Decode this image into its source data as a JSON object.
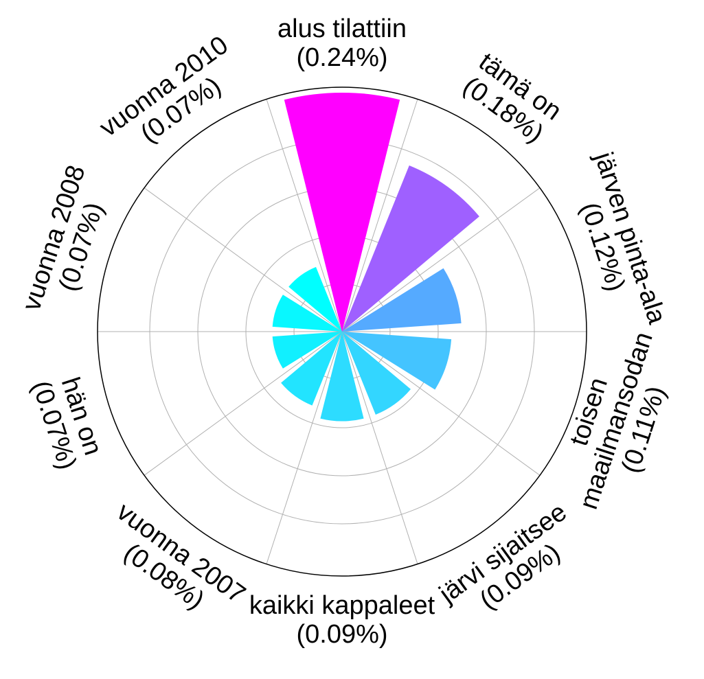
{
  "chart_data": {
    "type": "bar",
    "subtype": "polar",
    "title": "",
    "grid": true,
    "legend": "none",
    "max_value": 0.24,
    "categories": [
      {
        "label": "alus tilattiin",
        "pct": "(0.24%)",
        "value": 0.24,
        "color": "#ff00ff"
      },
      {
        "label": "tämä on",
        "pct": "(0.18%)",
        "value": 0.18,
        "color": "#9f60ff"
      },
      {
        "label": "järven pinta-ala",
        "pct": "(0.12%)",
        "value": 0.12,
        "color": "#55aaff"
      },
      {
        "label": "toisen maailmansodan",
        "pct": "(0.11%)",
        "value": 0.11,
        "color": "#44c4ff"
      },
      {
        "label": "järvi sijaitsee",
        "pct": "(0.09%)",
        "value": 0.09,
        "color": "#33d6ff"
      },
      {
        "label": "kaikki kappaleet",
        "pct": "(0.09%)",
        "value": 0.09,
        "color": "#2ddcff"
      },
      {
        "label": "vuonna 2007",
        "pct": "(0.08%)",
        "value": 0.08,
        "color": "#22e4ff"
      },
      {
        "label": "hän on",
        "pct": "(0.07%)",
        "value": 0.07,
        "color": "#11f0ff"
      },
      {
        "label": "vuonna 2008",
        "pct": "(0.07%)",
        "value": 0.07,
        "color": "#08f8ff"
      },
      {
        "label": "vuonna 2010",
        "pct": "(0.07%)",
        "value": 0.07,
        "color": "#00ffff"
      }
    ]
  }
}
